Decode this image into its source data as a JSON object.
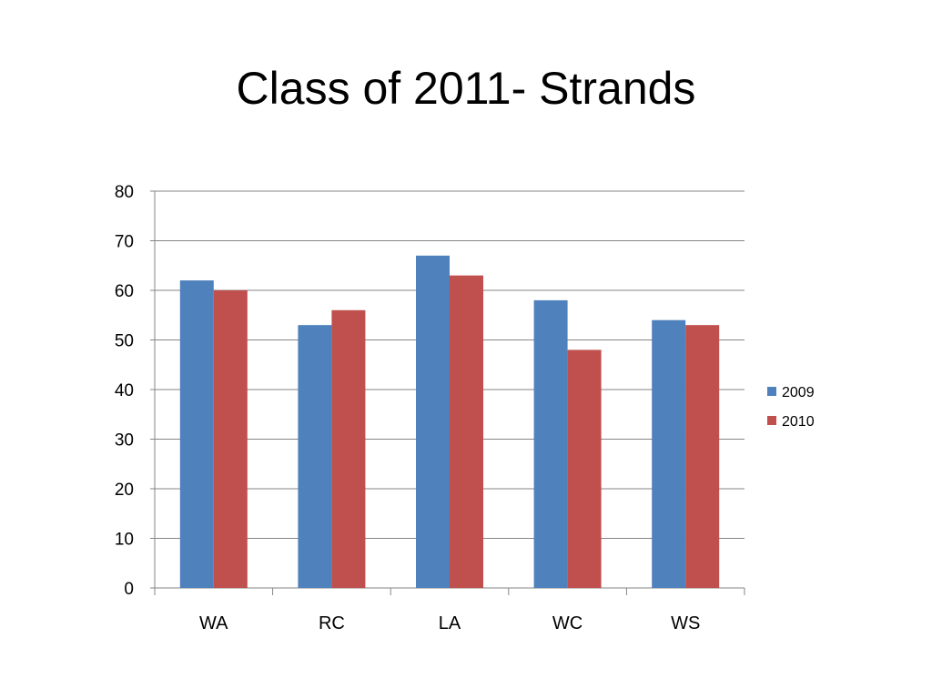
{
  "slide": {
    "title": "Class of 2011- Strands"
  },
  "chart_data": {
    "type": "bar",
    "title": "Class of 2011- Strands",
    "categories": [
      "WA",
      "RC",
      "LA",
      "WC",
      "WS"
    ],
    "series": [
      {
        "name": "2009",
        "color": "#4f81bd",
        "values": [
          62,
          53,
          67,
          58,
          54
        ]
      },
      {
        "name": "2010",
        "color": "#c0504d",
        "values": [
          60,
          56,
          63,
          48,
          53
        ]
      }
    ],
    "y_ticks": [
      0,
      10,
      20,
      30,
      40,
      50,
      60,
      70,
      80
    ],
    "ylim": [
      0,
      80
    ],
    "xlabel": "",
    "ylabel": "",
    "grid": true,
    "legend": "right"
  }
}
